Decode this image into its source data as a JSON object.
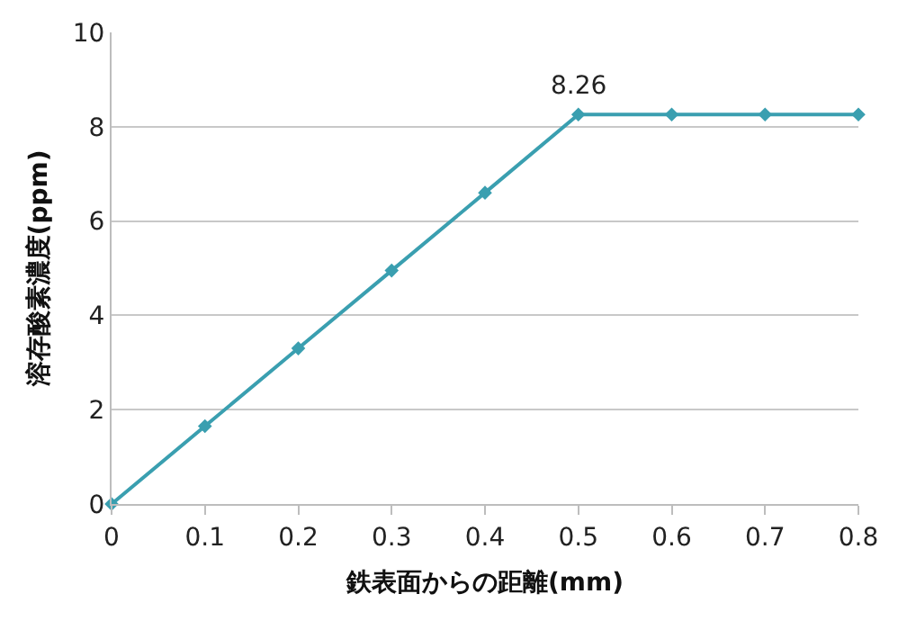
{
  "chart_data": {
    "type": "line",
    "xlabel": "鉄表面からの距離(mm)",
    "ylabel": "溶存酸素濃度(ppm)",
    "x": [
      0,
      0.1,
      0.2,
      0.3,
      0.4,
      0.5,
      0.6,
      0.7,
      0.8
    ],
    "series": [
      {
        "color": "#3a9fb0",
        "values": [
          0,
          1.65,
          3.3,
          4.95,
          6.6,
          8.26,
          8.26,
          8.26,
          8.26
        ]
      }
    ],
    "annotations": [
      {
        "text": "8.26",
        "x": 0.5,
        "y": 8.26
      }
    ],
    "xlim": [
      0,
      0.8
    ],
    "xticks": [
      0,
      0.1,
      0.2,
      0.3,
      0.4,
      0.5,
      0.6,
      0.7,
      0.8
    ],
    "ylim": [
      0,
      10
    ],
    "yticks": [
      0,
      2,
      4,
      6,
      8,
      10
    ],
    "grid": "y",
    "marker": "diamond",
    "line_style": "solid",
    "legend": false
  }
}
